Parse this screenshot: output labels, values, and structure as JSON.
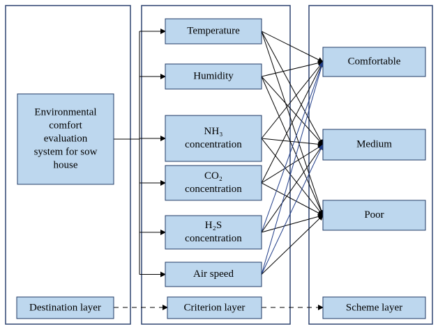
{
  "destination": {
    "lines": [
      "Environmental",
      "comfort",
      "evaluation",
      "system for sow",
      "house"
    ]
  },
  "criteria": [
    {
      "lines": [
        "Temperature"
      ]
    },
    {
      "lines": [
        "Humidity"
      ]
    },
    {
      "lines": [
        "NH₃",
        "concentration"
      ]
    },
    {
      "lines": [
        "CO₂",
        "concentration"
      ]
    },
    {
      "lines": [
        "H₂S",
        "concentration"
      ]
    },
    {
      "lines": [
        "Air speed"
      ]
    }
  ],
  "schemes": [
    {
      "lines": [
        "Comfortable"
      ]
    },
    {
      "lines": [
        "Medium"
      ]
    },
    {
      "lines": [
        "Poor"
      ]
    }
  ],
  "layers": [
    "Destination layer",
    "Criterion layer",
    "Scheme layer"
  ]
}
